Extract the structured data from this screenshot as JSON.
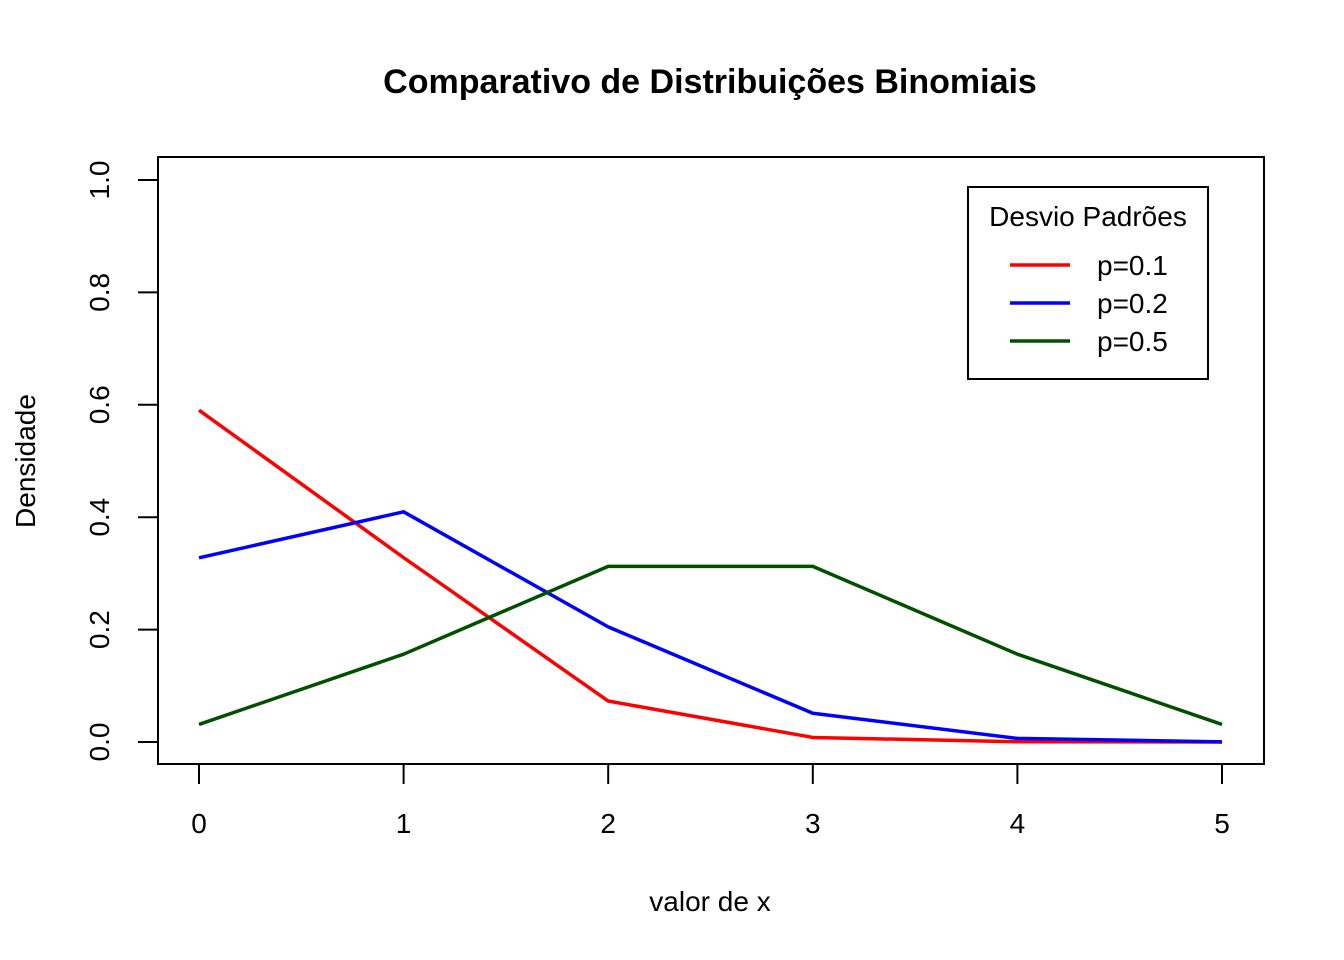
{
  "chart_data": {
    "type": "line",
    "title": "Comparativo de Distribuições Binomiais",
    "xlabel": "valor de x",
    "ylabel": "Densidade",
    "x": [
      0,
      1,
      2,
      3,
      4,
      5
    ],
    "xlim": [
      0,
      5
    ],
    "ylim": [
      0,
      1
    ],
    "xticks": [
      "0",
      "1",
      "2",
      "3",
      "4",
      "5"
    ],
    "yticks": [
      "0.0",
      "0.2",
      "0.4",
      "0.6",
      "0.8",
      "1.0"
    ],
    "grid": false,
    "legend": {
      "title": "Desvio Padrões",
      "position": "top-right"
    },
    "series": [
      {
        "name": "p=0.1",
        "color": "#ff0000",
        "values": [
          0.59049,
          0.32805,
          0.0729,
          0.0081,
          0.00045,
          1e-05
        ]
      },
      {
        "name": "p=0.2",
        "color": "#0000ff",
        "values": [
          0.32768,
          0.4096,
          0.2048,
          0.0512,
          0.0064,
          0.00032
        ]
      },
      {
        "name": "p=0.5",
        "color": "#005000",
        "values": [
          0.03125,
          0.15625,
          0.3125,
          0.3125,
          0.15625,
          0.03125
        ]
      }
    ]
  }
}
